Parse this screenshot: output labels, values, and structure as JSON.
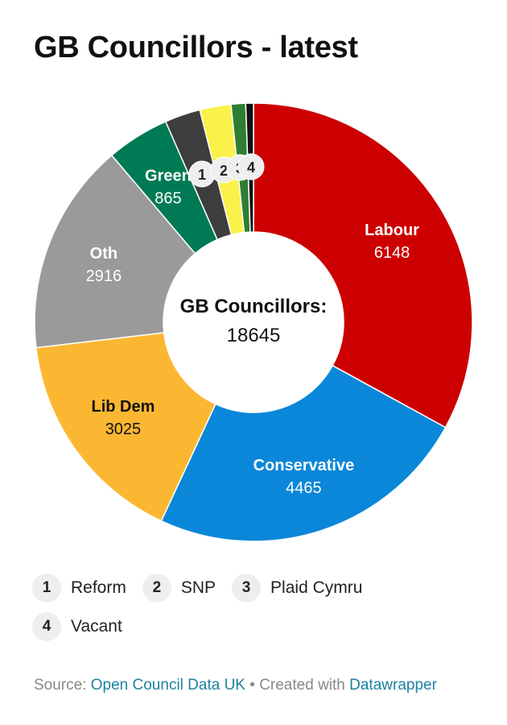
{
  "title": "GB Councillors - latest",
  "chart_data": {
    "type": "pie",
    "donut": true,
    "center_label": "GB Councillors:",
    "center_value": "18645",
    "slices": [
      {
        "name": "Labour",
        "value": 6148,
        "label": "Labour",
        "value_label": "6148",
        "color": "#cc0000",
        "text_color": "#ffffff"
      },
      {
        "name": "Conservative",
        "value": 4465,
        "label": "Conservative",
        "value_label": "4465",
        "color": "#0a87d8",
        "text_color": "#ffffff"
      },
      {
        "name": "Lib Dem",
        "value": 3025,
        "label": "Lib Dem",
        "value_label": "3025",
        "color": "#fcb732",
        "text_color": "#111111"
      },
      {
        "name": "Oth",
        "value": 2916,
        "label": "Oth",
        "value_label": "2916",
        "color": "#9a9a9a",
        "text_color": "#ffffff"
      },
      {
        "name": "Green",
        "value": 865,
        "label": "Green",
        "value_label": "865",
        "color": "#007a55",
        "text_color": "#ffffff"
      },
      {
        "name": "Reform",
        "value": 490,
        "marker": "1",
        "color": "#3d3d3d"
      },
      {
        "name": "SNP",
        "value": 430,
        "marker": "2",
        "color": "#faf14a"
      },
      {
        "name": "Plaid Cymru",
        "value": 200,
        "marker": "3",
        "color": "#2e7d32"
      },
      {
        "name": "Vacant",
        "value": 106,
        "marker": "4",
        "color": "#111111"
      }
    ]
  },
  "legend": [
    {
      "marker": "1",
      "label": "Reform"
    },
    {
      "marker": "2",
      "label": "SNP"
    },
    {
      "marker": "3",
      "label": "Plaid Cymru"
    },
    {
      "marker": "4",
      "label": "Vacant"
    }
  ],
  "footer": {
    "source_prefix": "Source: ",
    "source_link": "Open Council Data UK",
    "separator": " • Created with ",
    "tool_link": "Datawrapper"
  }
}
